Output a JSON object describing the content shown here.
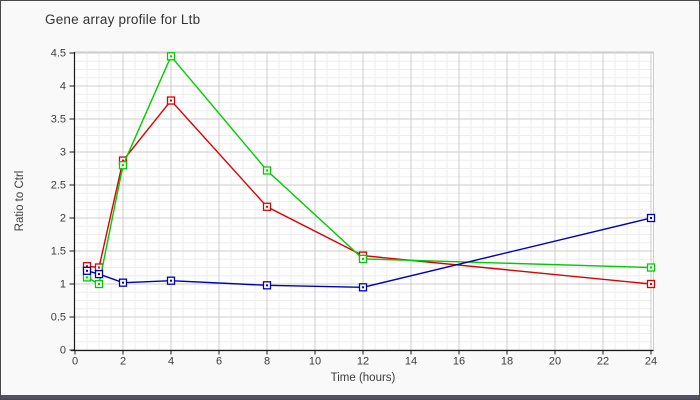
{
  "window": {
    "title": "Gene array profile for Ltb"
  },
  "chart_data": {
    "type": "line",
    "title": "Gene array profile for Ltb",
    "xlabel": "Time (hours)",
    "ylabel": "Ratio to Ctrl",
    "x": [
      0.5,
      1,
      2,
      4,
      8,
      12,
      24
    ],
    "series": [
      {
        "name": "red-series",
        "color": "#dd0000",
        "values": [
          1.27,
          1.25,
          2.87,
          3.78,
          2.17,
          1.43,
          1.0
        ]
      },
      {
        "name": "green-series",
        "color": "#00cc00",
        "values": [
          1.1,
          1.0,
          2.8,
          4.45,
          2.72,
          1.38,
          1.25
        ]
      },
      {
        "name": "blue-series",
        "color": "#0000bb",
        "values": [
          1.2,
          1.15,
          1.02,
          1.05,
          0.98,
          0.95,
          2.0
        ]
      }
    ],
    "xlim": [
      0,
      24
    ],
    "ylim": [
      0,
      4.5
    ],
    "x_ticks": [
      0,
      2,
      4,
      6,
      8,
      10,
      12,
      14,
      16,
      18,
      20,
      22,
      24
    ],
    "y_ticks": [
      0,
      0.5,
      1,
      1.5,
      2,
      2.5,
      3,
      3.5,
      4,
      4.5
    ],
    "x_minor_step": 0.5,
    "y_minor_step": 0.125,
    "grid": true,
    "legend": "none",
    "marker": "open-square-with-dot"
  },
  "colors": {
    "background": "#f9f9f9",
    "plot_background": "#ffffff",
    "grid_major": "#cccccc",
    "grid_minor": "#ededed",
    "axis": "#1a1a1a",
    "tick_text": "#3c3c3c",
    "title_text": "#333333",
    "border": "#4a4a4a",
    "bottom_bar": "#53535f"
  }
}
